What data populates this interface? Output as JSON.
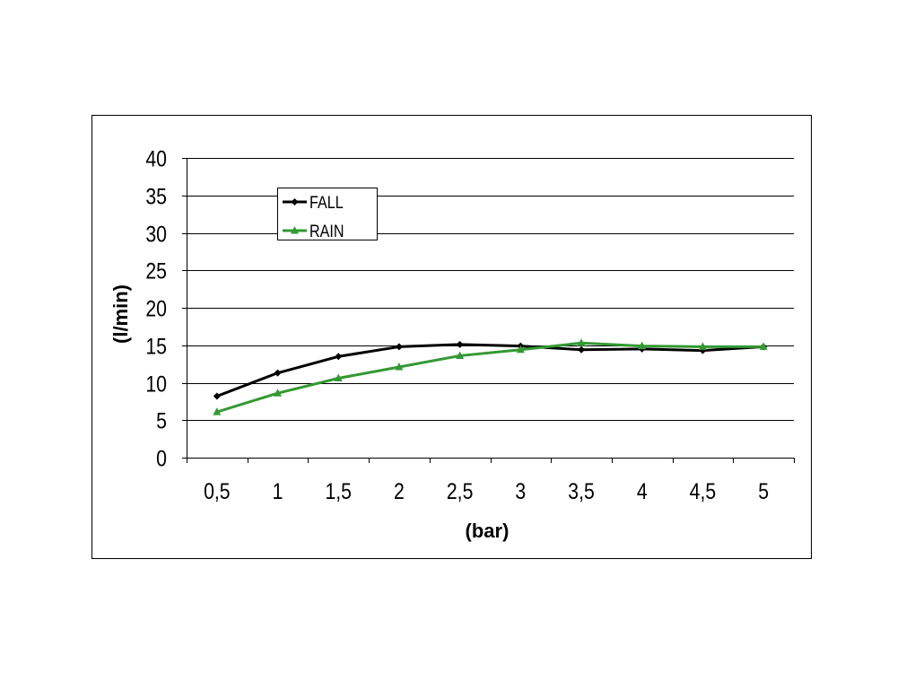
{
  "chart_data": {
    "type": "line",
    "title": "",
    "xlabel": "(bar)",
    "ylabel": "(l/min)",
    "categories": [
      "0,5",
      "1",
      "1,5",
      "2",
      "2,5",
      "3",
      "3,5",
      "4",
      "4,5",
      "5"
    ],
    "ylim": [
      0,
      40
    ],
    "yticks": [
      "0",
      "5",
      "10",
      "15",
      "20",
      "25",
      "30",
      "35",
      "40"
    ],
    "grid": true,
    "legend_position": "top-left",
    "series": [
      {
        "name": "FALL",
        "color": "#000000",
        "marker": "diamond",
        "values": [
          8.2,
          11.3,
          13.5,
          14.8,
          15.1,
          14.9,
          14.4,
          14.5,
          14.3,
          14.8
        ]
      },
      {
        "name": "RAIN",
        "color": "#339933",
        "marker": "triangle",
        "values": [
          6.1,
          8.6,
          10.6,
          12.1,
          13.6,
          14.4,
          15.3,
          14.9,
          14.8,
          14.8
        ]
      }
    ]
  }
}
